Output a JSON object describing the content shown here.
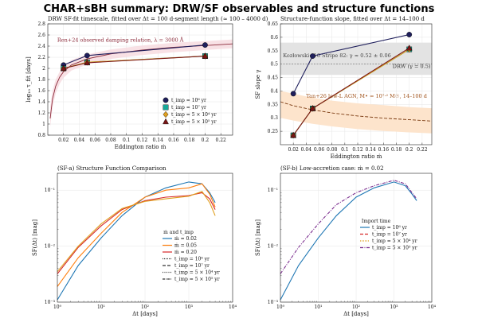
{
  "title": "CHAR+sBH summary: DRW/SF observables and structure functions",
  "colors": {
    "navy": "#1f1f5c",
    "teal": "#17a89a",
    "gold": "#e0a020",
    "maroon": "#7a1515",
    "blue": "#1f77b4",
    "orange": "#ff7f0e",
    "red": "#d62728",
    "purple": "#7b2d8e",
    "band_orange": "#fde4cc",
    "band_gray": "#e3e3e3"
  },
  "chart_data": [
    {
      "id": "tl",
      "type": "line",
      "title": "DRW SF-fit timescale, fitted over Δt = 100 d-segment length (≈ 100 – 4000 d)",
      "xlabel": "Eddington ratio ṁ",
      "ylabel": "log₁₀ τ_fit [days]",
      "xlim": [
        0,
        0.235
      ],
      "ylim": [
        0.8,
        2.8
      ],
      "xticks": [
        0.02,
        0.04,
        0.06,
        0.08,
        0.1,
        0.12,
        0.14,
        0.16,
        0.18,
        0.2,
        0.22
      ],
      "xtick_labels": [
        "0.02",
        "0.04",
        "0.06",
        "0.08",
        "0.1",
        "0.12",
        "0.14",
        "0.16",
        "0.18",
        "0.2",
        "0.22"
      ],
      "yticks": [
        0.8,
        1,
        1.2,
        1.4,
        1.6,
        1.8,
        2,
        2.2,
        2.4,
        2.6,
        2.8
      ],
      "ytick_labels": [
        "0.8",
        "1",
        "1.2",
        "1.4",
        "1.6",
        "1.8",
        "2",
        "2.2",
        "2.4",
        "2.6",
        "2.8"
      ],
      "annotation": "Ren+24 observed damping relation, λ = 3000 Å",
      "ref_curve_x": [
        0.003,
        0.006,
        0.01,
        0.015,
        0.02,
        0.03,
        0.05,
        0.08,
        0.12,
        0.16,
        0.2,
        0.235
      ],
      "ref_curve_y": [
        1.1,
        1.45,
        1.68,
        1.84,
        1.94,
        2.06,
        2.17,
        2.26,
        2.33,
        2.38,
        2.41,
        2.44
      ],
      "ref_band_lo": [
        0.95,
        1.3,
        1.55,
        1.72,
        1.83,
        1.96,
        2.07,
        2.17,
        2.24,
        2.29,
        2.33,
        2.36
      ],
      "ref_band_hi": [
        1.3,
        1.6,
        1.8,
        1.94,
        2.04,
        2.15,
        2.25,
        2.34,
        2.41,
        2.46,
        2.49,
        2.52
      ],
      "legend_title": "",
      "legend": [
        "t_imp = 10⁶ yr",
        "t_imp = 10⁷ yr",
        "t_imp = 5 × 10⁴ yr",
        "t_imp = 5 × 10⁵ yr"
      ],
      "x": [
        0.02,
        0.05,
        0.2
      ],
      "series": [
        {
          "color": "#1f1f5c",
          "marker": "circle",
          "values": [
            2.06,
            2.23,
            2.42
          ]
        },
        {
          "color": "#17a89a",
          "marker": "square",
          "values": [
            2.0,
            2.11,
            2.22
          ]
        },
        {
          "color": "#e0a020",
          "marker": "diamond",
          "values": [
            2.0,
            2.11,
            2.22
          ]
        },
        {
          "color": "#7a1515",
          "marker": "triangle",
          "values": [
            2.0,
            2.1,
            2.22
          ]
        }
      ]
    },
    {
      "id": "tr",
      "type": "line",
      "title": "Structure-function slope, fitted over Δt = 14–100 d",
      "xlabel": "Eddington ratio ṁ",
      "ylabel": "SF slope γ",
      "xlim": [
        0,
        0.235
      ],
      "ylim": [
        0.2,
        0.65
      ],
      "xticks": [
        0.02,
        0.04,
        0.06,
        0.08,
        0.1,
        0.12,
        0.14,
        0.16,
        0.18,
        0.2,
        0.22
      ],
      "xtick_labels": [
        "0.02",
        "0.04",
        "0.06",
        "0.08",
        "0.1",
        "0.12",
        "0.14",
        "0.16",
        "0.18",
        "0.2",
        "0.22"
      ],
      "yticks": [
        0.25,
        0.3,
        0.35,
        0.4,
        0.45,
        0.5,
        0.55,
        0.6,
        0.65
      ],
      "ytick_labels": [
        "0.25",
        "0.3",
        "0.35",
        "0.4",
        "0.45",
        "0.5",
        "0.55",
        "0.6",
        "0.65"
      ],
      "gray_band": [
        0.46,
        0.58
      ],
      "drw_line": 0.5,
      "annotation_kozlowski": "Kozłowski+16 Stripe 82: γ ≈ 0.52 ± 0.06",
      "annotation_drw": "DRW (γ = 0.5)",
      "annotation_tan": "Tan+26 low-L AGN, M• = 10⁷·² M☉, 14–100 d",
      "tan_curve_x": [
        0.0,
        0.02,
        0.05,
        0.08,
        0.12,
        0.16,
        0.2,
        0.235
      ],
      "tan_curve_y": [
        0.36,
        0.345,
        0.33,
        0.318,
        0.307,
        0.299,
        0.293,
        0.288
      ],
      "tan_band_lo": [
        0.3,
        0.29,
        0.278,
        0.268,
        0.258,
        0.251,
        0.246,
        0.242
      ],
      "tan_band_hi": [
        0.4,
        0.39,
        0.375,
        0.364,
        0.354,
        0.347,
        0.34,
        0.336
      ],
      "x": [
        0.02,
        0.05,
        0.2
      ],
      "series": [
        {
          "color": "#1f1f5c",
          "marker": "circle",
          "values": [
            0.39,
            0.53,
            0.61
          ]
        },
        {
          "color": "#17a89a",
          "marker": "square",
          "values": [
            0.235,
            0.335,
            0.555
          ]
        },
        {
          "color": "#e0a020",
          "marker": "diamond",
          "values": [
            0.235,
            0.335,
            0.555
          ]
        },
        {
          "color": "#7a1515",
          "marker": "triangle",
          "values": [
            0.235,
            0.335,
            0.56
          ]
        }
      ]
    },
    {
      "id": "bl",
      "type": "line",
      "title": "(SF-a) Structure Function Comparison",
      "xlabel": "Δt [days]",
      "ylabel": "SF(Δt) [mag]",
      "xlog": true,
      "ylog": true,
      "xlim": [
        1,
        10000
      ],
      "ylim": [
        0.001,
        0.2
      ],
      "xtick_labels": [
        "10⁰",
        "10¹",
        "10²",
        "10³",
        "10⁴"
      ],
      "ytick_labels": [
        "10⁻³",
        "10⁻²",
        "10⁻¹"
      ],
      "legend_title": "ṁ and t_imp",
      "legend": [
        "ṁ = 0.02",
        "ṁ = 0.05",
        "ṁ = 0.20",
        "t_imp = 10⁶ yr",
        "t_imp = 10⁷ yr",
        "t_imp = 5 × 10⁴ yr",
        "t_imp = 5 × 10⁵ yr"
      ],
      "curves": [
        {
          "color": "#1f77b4",
          "x": [
            1,
            3,
            10,
            30,
            100,
            300,
            1000,
            2000,
            3000,
            4000
          ],
          "y": [
            0.0011,
            0.0045,
            0.014,
            0.035,
            0.075,
            0.11,
            0.14,
            0.13,
            0.09,
            0.06
          ]
        },
        {
          "color": "#ff7f0e",
          "x": [
            1,
            3,
            10,
            30,
            100,
            300,
            1000,
            2000,
            3000,
            4000
          ],
          "y": [
            0.0019,
            0.0062,
            0.017,
            0.04,
            0.075,
            0.1,
            0.11,
            0.13,
            0.085,
            0.05
          ]
        },
        {
          "color": "#d62728",
          "x": [
            1,
            3,
            10,
            30,
            100,
            300,
            1000,
            2000,
            3000,
            4000
          ],
          "y": [
            0.0032,
            0.0095,
            0.023,
            0.045,
            0.065,
            0.075,
            0.08,
            0.09,
            0.07,
            0.045
          ]
        },
        {
          "color": "#e0a020",
          "x": [
            1,
            3,
            10,
            30,
            100,
            300,
            1000,
            2000,
            3000,
            4000
          ],
          "y": [
            0.0035,
            0.01,
            0.025,
            0.047,
            0.063,
            0.07,
            0.078,
            0.095,
            0.06,
            0.035
          ]
        }
      ]
    },
    {
      "id": "br",
      "type": "line",
      "title": "(SF-b) Low-accretion case: ṁ = 0.02",
      "xlabel": "Δt [days]",
      "ylabel": "SF(Δt) [mag]",
      "xlog": true,
      "ylog": true,
      "xlim": [
        1,
        10000
      ],
      "ylim": [
        0.001,
        0.2
      ],
      "xtick_labels": [
        "10⁰",
        "10¹",
        "10²",
        "10³",
        "10⁴"
      ],
      "ytick_labels": [
        "10⁻³",
        "10⁻²",
        "10⁻¹"
      ],
      "legend_title": "Import time",
      "legend": [
        "t_imp = 10⁶ yr",
        "t_imp = 10⁷ yr",
        "t_imp = 5 × 10⁴ yr",
        "t_imp = 5 × 10⁵ yr"
      ],
      "curves": [
        {
          "color": "#1f77b4",
          "x": [
            1,
            3,
            10,
            30,
            100,
            300,
            1000,
            2000,
            3000,
            4000
          ],
          "y": [
            0.0011,
            0.0045,
            0.014,
            0.035,
            0.075,
            0.11,
            0.14,
            0.12,
            0.085,
            0.065
          ]
        },
        {
          "color": "#7b2d8e",
          "x": [
            1,
            3,
            10,
            30,
            100,
            300,
            1000,
            2000,
            3000,
            4000
          ],
          "y": [
            0.0032,
            0.0095,
            0.025,
            0.055,
            0.09,
            0.12,
            0.15,
            0.13,
            0.09,
            0.07
          ]
        }
      ]
    }
  ]
}
